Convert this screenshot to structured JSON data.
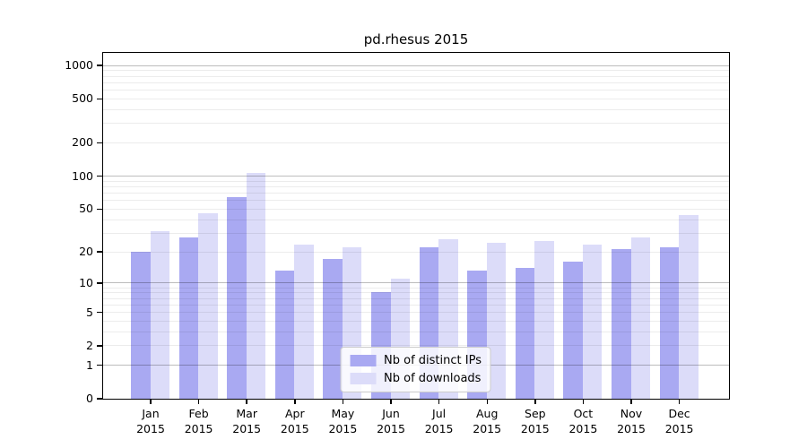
{
  "title": "pd.rhesus 2015",
  "chart_data": {
    "type": "bar",
    "title": "pd.rhesus 2015",
    "categories": [
      "Jan",
      "Feb",
      "Mar",
      "Apr",
      "May",
      "Jun",
      "Jul",
      "Aug",
      "Sep",
      "Oct",
      "Nov",
      "Dec"
    ],
    "x_sublabel": "2015",
    "series": [
      {
        "name": "Nb of distinct IPs",
        "color": "#a9a9f2",
        "values": [
          20,
          27,
          64,
          13,
          17,
          8,
          22,
          13,
          14,
          16,
          21,
          22
        ]
      },
      {
        "name": "Nb of downloads",
        "color": "#dcdcf9",
        "values": [
          31,
          45,
          105,
          23,
          22,
          11,
          26,
          24,
          25,
          23,
          27,
          44
        ]
      }
    ],
    "yscale": "log10(value+1)",
    "ylim": [
      0,
      1297
    ],
    "yticks": [
      0,
      1,
      2,
      5,
      10,
      20,
      50,
      100,
      200,
      500,
      1000
    ],
    "major_gridlines": [
      1,
      10,
      100,
      1000
    ],
    "minor_gridlines": [
      2,
      3,
      4,
      5,
      6,
      7,
      8,
      9,
      20,
      30,
      40,
      50,
      60,
      70,
      80,
      90,
      200,
      300,
      400,
      500,
      600,
      700,
      800,
      900
    ],
    "grid": true,
    "legend_position": "lower center"
  }
}
